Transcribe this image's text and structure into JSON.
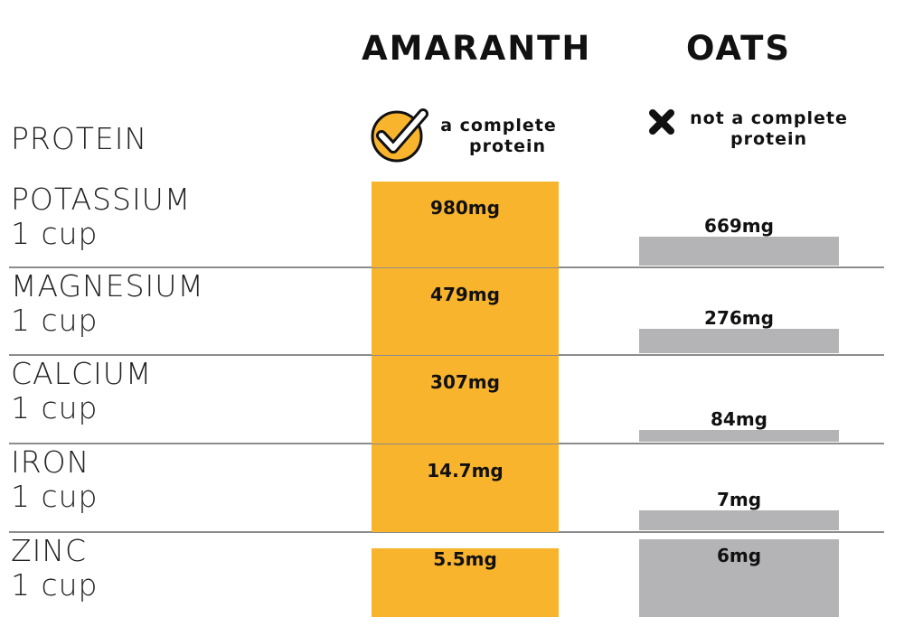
{
  "columns": [
    "AMARANTH",
    "OATS"
  ],
  "protein": {
    "label": "PROTEIN",
    "amaranth": {
      "line1": "a complete",
      "line2": "protein",
      "icon": "check-circle-icon"
    },
    "oats": {
      "line1": "not a complete",
      "line2": "protein",
      "icon": "x-mark-icon"
    }
  },
  "colors": {
    "amaranth": "#F9B42D",
    "oats": "#B4B4B6",
    "check_ring": "#F9B42D",
    "divider": "#8C8C8C"
  },
  "chart_data": {
    "type": "bar",
    "categories": [
      "POTASSIUM",
      "MAGNESIUM",
      "CALCIUM",
      "IRON",
      "ZINC"
    ],
    "unit_labels": [
      "1 cup",
      "1 cup",
      "1 cup",
      "1 cup",
      "1 cup"
    ],
    "series": [
      {
        "name": "AMARANTH",
        "values": [
          980,
          479,
          307,
          14.7,
          5.5
        ],
        "labels": [
          "980mg",
          "479mg",
          "307mg",
          "14.7mg",
          "5.5mg"
        ]
      },
      {
        "name": "OATS",
        "values": [
          669,
          276,
          84,
          7,
          6
        ],
        "labels": [
          "669mg",
          "276mg",
          "84mg",
          "7mg",
          "6mg"
        ]
      }
    ],
    "unit": "mg",
    "title": "",
    "xlabel": "",
    "ylabel": ""
  }
}
